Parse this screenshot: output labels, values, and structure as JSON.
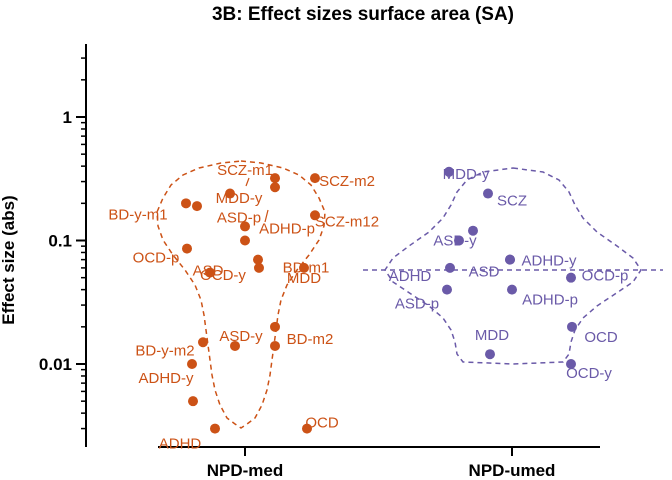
{
  "colors": {
    "NPD-med": "#cc5216",
    "NPD-umed": "#6a5aa8",
    "axis": "#000000"
  },
  "chart_data": {
    "type": "scatter",
    "title": "3B: Effect sizes surface area (SA)",
    "ylabel": "Effect size (abs)",
    "xlabel": "",
    "y_scale": "log",
    "ylim": [
      0.0022,
      4
    ],
    "yticks": [
      {
        "value": 1,
        "label": "1"
      },
      {
        "value": 0.1,
        "label": "0.1"
      },
      {
        "value": 0.01,
        "label": "0.01"
      }
    ],
    "categories": [
      "NPD-med",
      "NPD-umed"
    ],
    "grid": false,
    "series": [
      {
        "name": "NPD-med",
        "points": [
          {
            "label": "SCZ-m1",
            "y": 0.32
          },
          {
            "label": "SCZ-m2",
            "y": 0.32
          },
          {
            "label": "MDD-y",
            "y": 0.27
          },
          {
            "label": "",
            "y": 0.24
          },
          {
            "label": "BD-y-m1",
            "y": 0.2
          },
          {
            "label": "",
            "y": 0.19
          },
          {
            "label": "SCZ-m12",
            "y": 0.16
          },
          {
            "label": "ASD-p",
            "y": 0.13
          },
          {
            "label": "ADHD-p",
            "y": 0.1
          },
          {
            "label": "OCD-p",
            "y": 0.086
          },
          {
            "label": "BD-m1",
            "y": 0.07
          },
          {
            "label": "OCD-y",
            "y": 0.06
          },
          {
            "label": "MDD",
            "y": 0.06
          },
          {
            "label": "ASD",
            "y": 0.055
          },
          {
            "label": "ASD-y",
            "y": 0.02
          },
          {
            "label": "BD-y-m2",
            "y": 0.015
          },
          {
            "label": "",
            "y": 0.014
          },
          {
            "label": "BD-m2",
            "y": 0.014
          },
          {
            "label": "ADHD-y",
            "y": 0.01
          },
          {
            "label": "",
            "y": 0.005
          },
          {
            "label": "OCD",
            "y": 0.003
          },
          {
            "label": "ADHD",
            "y": 0.003
          }
        ]
      },
      {
        "name": "NPD-umed",
        "points": [
          {
            "label": "MDD-y",
            "y": 0.36
          },
          {
            "label": "SCZ",
            "y": 0.24
          },
          {
            "label": "ASD-y",
            "y": 0.12
          },
          {
            "label": "",
            "y": 0.1
          },
          {
            "label": "ADHD-y",
            "y": 0.07
          },
          {
            "label": "ASD",
            "y": 0.07
          },
          {
            "label": "OCD-p",
            "y": 0.05
          },
          {
            "label": "ADHD",
            "y": 0.06
          },
          {
            "label": "ADHD-p",
            "y": 0.04
          },
          {
            "label": "ASD-p",
            "y": 0.04
          },
          {
            "label": "OCD",
            "y": 0.02
          },
          {
            "label": "MDD",
            "y": 0.012
          },
          {
            "label": "OCD-y",
            "y": 0.01
          }
        ]
      }
    ]
  }
}
